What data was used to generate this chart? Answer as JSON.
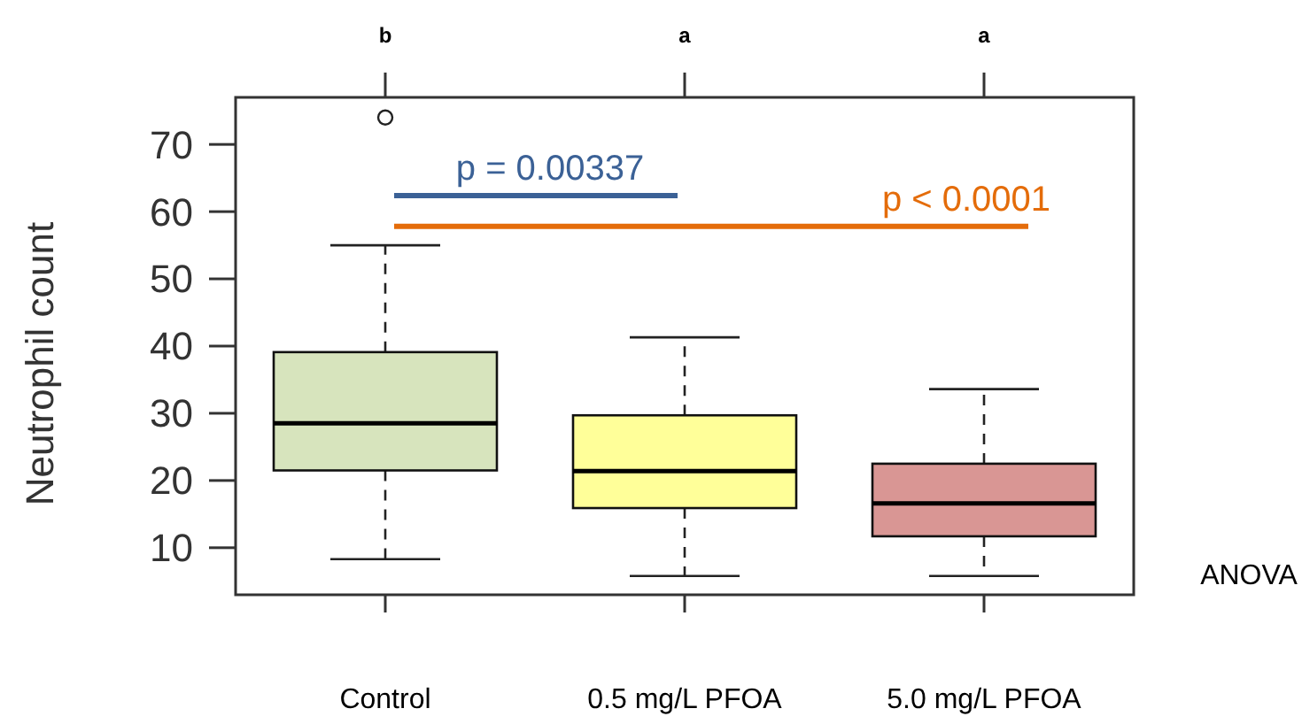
{
  "chart_data": {
    "type": "box",
    "ylabel": "Neutrophil count",
    "categories": [
      "Control",
      "0.5 mg/L PFOA",
      "5.0 mg/L PFOA"
    ],
    "colors": [
      "#d7e4bd",
      "#ffff99",
      "#d99694"
    ],
    "boxes": [
      {
        "low": 8.3,
        "q1": 21.5,
        "median": 28.5,
        "q3": 39.1,
        "high": 55,
        "outliers": [
          74
        ]
      },
      {
        "low": 5.8,
        "q1": 15.9,
        "median": 21.4,
        "q3": 29.7,
        "high": 41.3
      },
      {
        "low": 5.8,
        "q1": 11.7,
        "median": 16.6,
        "q3": 22.5,
        "high": 33.6
      }
    ],
    "ylim": [
      3,
      77
    ],
    "yticks": [
      10,
      20,
      30,
      40,
      50,
      60,
      70
    ],
    "grid": false,
    "annotations": [
      "b",
      "a",
      "a",
      "p = 0.00337",
      "p < 0.0001",
      "ANOVA"
    ]
  }
}
